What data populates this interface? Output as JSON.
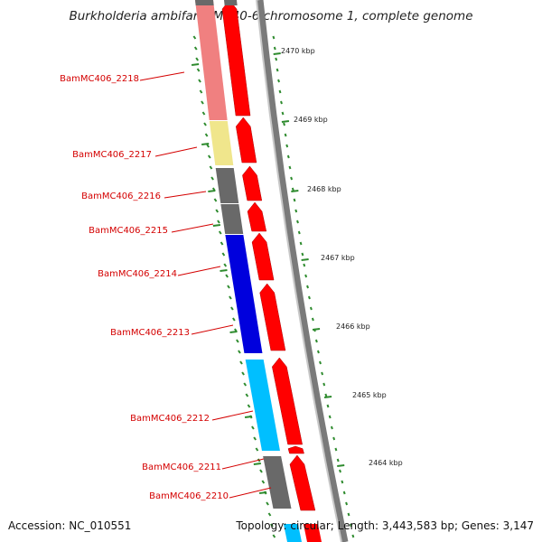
{
  "title": "Burkholderia ambifaria MC40-6 chromosome 1, complete genome",
  "accession": "Accession: NC_010551",
  "topology": "Topology: circular; Length: 3,443,583 bp; Genes: 3,147",
  "kbp_labels": [
    "2470 kbp",
    "2469 kbp",
    "2468 kbp",
    "2467 kbp",
    "2466 kbp",
    "2465 kbp",
    "2464 kbp"
  ],
  "genes": [
    {
      "label": "BamMC406_2218",
      "color": "#f08080"
    },
    {
      "label": "BamMC406_2217",
      "color": "#f0e68c"
    },
    {
      "label": "BamMC406_2216",
      "color": "#696969"
    },
    {
      "label": "BamMC406_2215",
      "color": "#696969"
    },
    {
      "label": "BamMC406_2214",
      "color": "#0000dd"
    },
    {
      "label": "BamMC406_2213",
      "color": "#0000dd"
    },
    {
      "label": "BamMC406_2212",
      "color": "#00bfff"
    },
    {
      "label": "BamMC406_2211",
      "color": "#ff0000"
    },
    {
      "label": "BamMC406_2210",
      "color": "#696969"
    }
  ],
  "colors": {
    "strand_arrow": "#ff0000",
    "backbone": "#808080",
    "tick": "#2e8b2e",
    "label_text": "#d40000"
  }
}
